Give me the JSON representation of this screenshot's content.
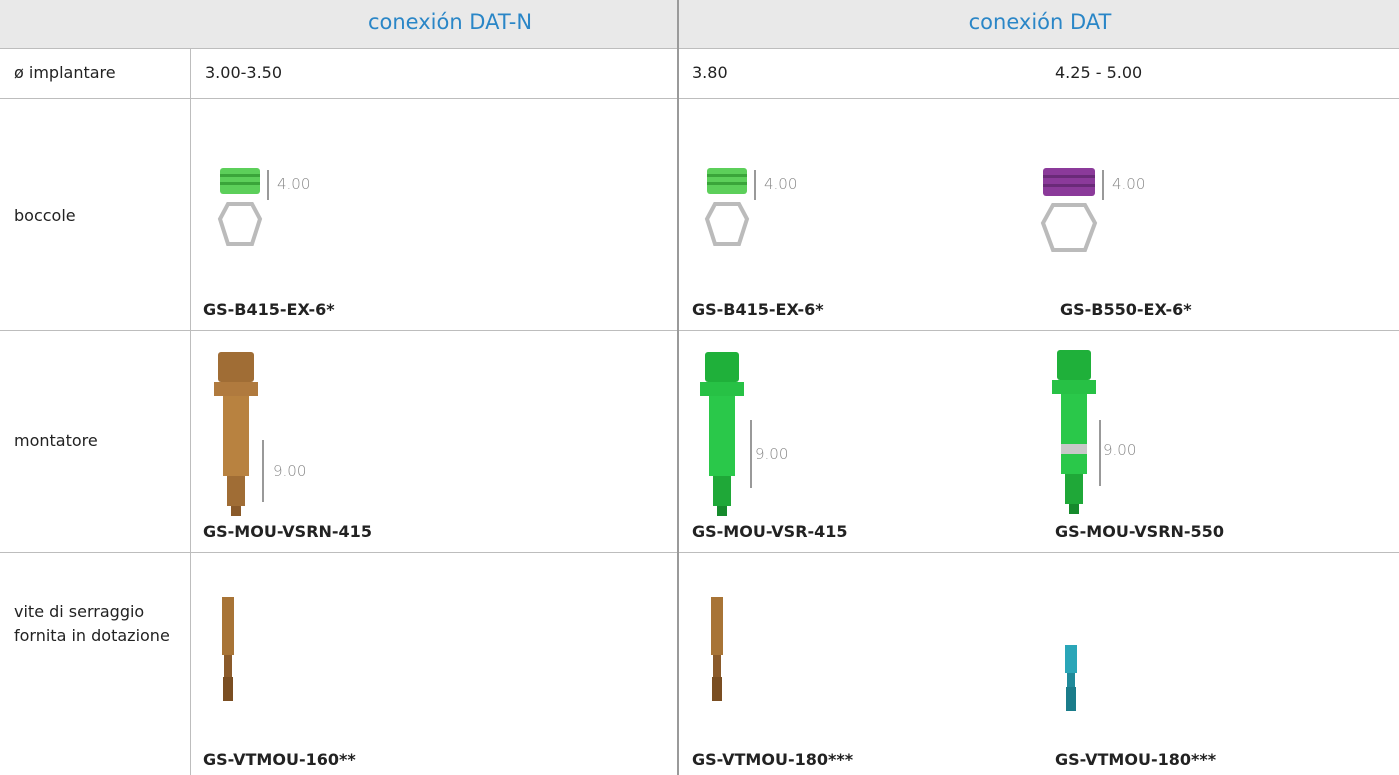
{
  "table": {
    "header": [
      "conexión DAT-N",
      "conexión DAT"
    ],
    "rows": [
      {
        "label": "ø implantare",
        "cells": [
          "3.00-3.50",
          "3.80",
          "4.25 - 5.00"
        ]
      },
      {
        "label": "boccole",
        "cells": [
          {
            "dim": "4.00",
            "code": "GS-B415-EX-6*"
          },
          {
            "dim": "4.00",
            "code": "GS-B415-EX-6*"
          },
          {
            "dim": "4.00",
            "code": "GS-B550-EX-6*"
          }
        ]
      },
      {
        "label": "montatore",
        "cells": [
          {
            "dim": "9.00",
            "code": "GS-MOU-VSRN-415"
          },
          {
            "dim": "9.00",
            "code": "GS-MOU-VSR-415"
          },
          {
            "dim": "9.00",
            "code": "GS-MOU-VSRN-550"
          }
        ]
      },
      {
        "label": "vite di serraggio fornita in dotazione",
        "cells": [
          {
            "code": "GS-VTMOU-160**"
          },
          {
            "code": "GS-VTMOU-180***"
          },
          {
            "code": "GS-VTMOU-180***"
          }
        ]
      }
    ]
  }
}
